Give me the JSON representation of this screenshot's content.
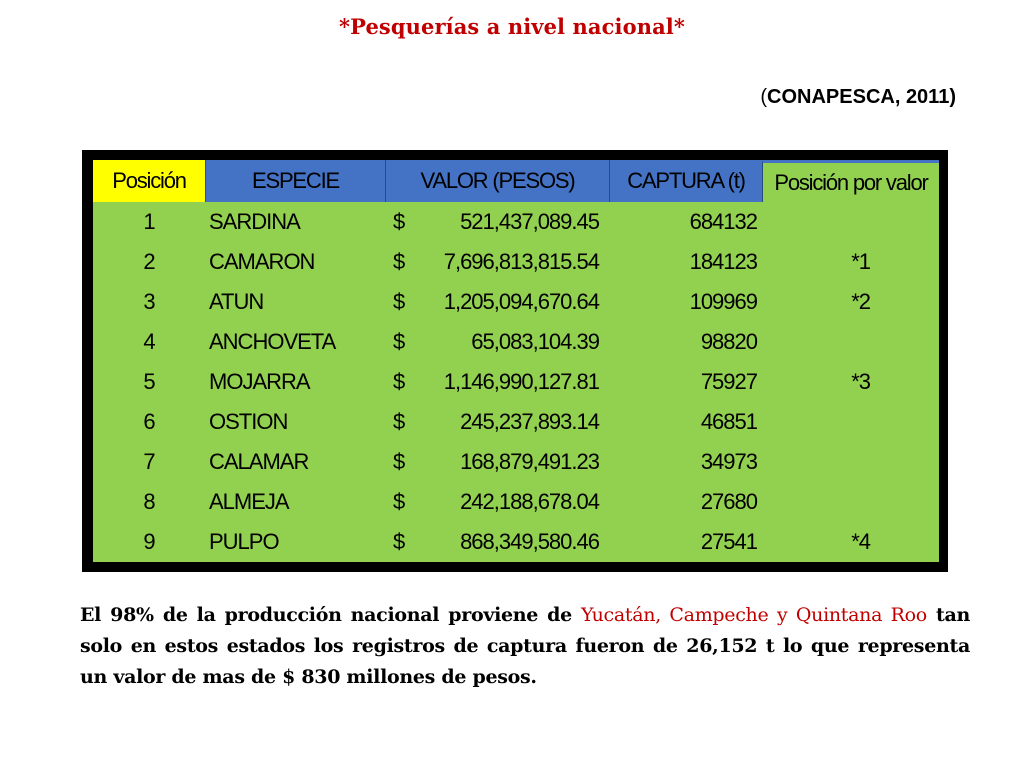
{
  "title": "*Pesquerías a nivel nacional*",
  "source": {
    "open_paren": "(",
    "text": "CONAPESCA,  2011)"
  },
  "table": {
    "headers": {
      "posicion": "Posición",
      "especie": "ESPECIE",
      "valor": "VALOR (PESOS)",
      "captura": "CAPTURA (t)",
      "posicion_valor": "Posición por  valor"
    },
    "currency_symbol": "$",
    "rows": [
      {
        "pos": "1",
        "especie": "SARDINA",
        "valor": "521,437,089.45",
        "captura": "684132",
        "pos_valor": ""
      },
      {
        "pos": "2",
        "especie": "CAMARON",
        "valor": "7,696,813,815.54",
        "captura": "184123",
        "pos_valor": "*1"
      },
      {
        "pos": "3",
        "especie": "ATUN",
        "valor": "1,205,094,670.64",
        "captura": "109969",
        "pos_valor": "*2"
      },
      {
        "pos": "4",
        "especie": "ANCHOVETA",
        "valor": "65,083,104.39",
        "captura": "98820",
        "pos_valor": ""
      },
      {
        "pos": "5",
        "especie": "MOJARRA",
        "valor": "1,146,990,127.81",
        "captura": "75927",
        "pos_valor": "*3"
      },
      {
        "pos": "6",
        "especie": "OSTION",
        "valor": "245,237,893.14",
        "captura": "46851",
        "pos_valor": ""
      },
      {
        "pos": "7",
        "especie": "CALAMAR",
        "valor": "168,879,491.23",
        "captura": "34973",
        "pos_valor": ""
      },
      {
        "pos": "8",
        "especie": "ALMEJA",
        "valor": "242,188,678.04",
        "captura": "27680",
        "pos_valor": ""
      },
      {
        "pos": "9",
        "especie": "PULPO",
        "valor": "868,349,580.46",
        "captura": "27541",
        "pos_valor": "*4"
      }
    ]
  },
  "note": {
    "part1": "El 98% de la producción nacional proviene de ",
    "highlight": "Yucatán, Campeche y Quintana Roo",
    "part2": "  tan solo en estos estados los registros de captura fueron de 26,152 t lo que representa un valor de mas de $ 830 millones de pesos."
  },
  "colors": {
    "title": "#c00000",
    "header_position": "#ffff00",
    "header_blue": "#4472c4",
    "table_body": "#92d050",
    "highlight_text": "#c00000"
  }
}
